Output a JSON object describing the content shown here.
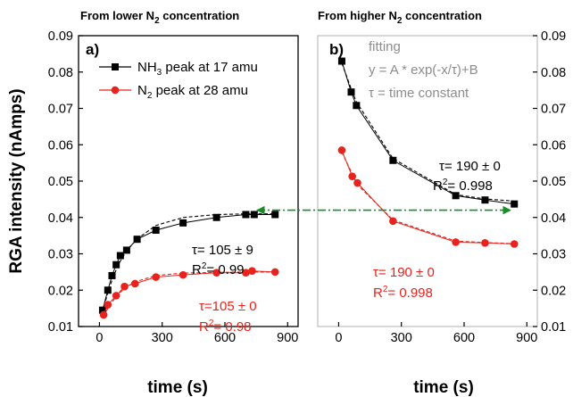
{
  "chart_data": [
    {
      "type": "scatter",
      "panel_label": "a)",
      "title": "From lower N",
      "title_sub": "2",
      "title_tail": " concentration",
      "xlabel": "time (s)",
      "ylabel": "RGA intensity (nAmps)",
      "xlim": [
        -100,
        950
      ],
      "ylim": [
        0.01,
        0.09
      ],
      "xticks": [
        "0",
        "300",
        "600",
        "900"
      ],
      "xtick_values": [
        0,
        300,
        600,
        900
      ],
      "yticks": [
        "0.01",
        "0.02",
        "0.03",
        "0.04",
        "0.05",
        "0.06",
        "0.07",
        "0.08",
        "0.09"
      ],
      "ytick_values": [
        0.01,
        0.02,
        0.03,
        0.04,
        0.05,
        0.06,
        0.07,
        0.08,
        0.09
      ],
      "legend_position": "top-left",
      "series": [
        {
          "name": "NH3 peak at 17 amu",
          "name_parts": [
            "NH",
            "3",
            " peak at 17 amu"
          ],
          "color": "#000000",
          "marker": "square",
          "x": [
            15,
            40,
            60,
            80,
            100,
            130,
            180,
            270,
            400,
            560,
            700,
            740,
            840
          ],
          "y": [
            0.0145,
            0.02,
            0.024,
            0.027,
            0.0295,
            0.031,
            0.034,
            0.0365,
            0.0385,
            0.04,
            0.0408,
            0.0408,
            0.0408
          ],
          "fit_y": [
            0.014,
            0.0193,
            0.0227,
            0.0256,
            0.028,
            0.0308,
            0.0341,
            0.0378,
            0.04,
            0.0408,
            0.041,
            0.041,
            0.041
          ]
        },
        {
          "name": "N2 peak at 28 amu",
          "name_parts": [
            "N",
            "2",
            " peak at 28 amu"
          ],
          "color": "#e8221c",
          "marker": "circle",
          "x": [
            20,
            40,
            80,
            120,
            170,
            270,
            400,
            560,
            700,
            730,
            840
          ],
          "y": [
            0.0132,
            0.016,
            0.0185,
            0.021,
            0.0218,
            0.0236,
            0.0242,
            0.0248,
            0.0248,
            0.0253,
            0.025
          ],
          "fit_y": [
            0.0128,
            0.015,
            0.0183,
            0.0205,
            0.0223,
            0.024,
            0.0247,
            0.0249,
            0.025,
            0.025,
            0.025
          ]
        }
      ],
      "annotations": [
        {
          "parts": [
            "τ= 105 ± 9"
          ],
          "color": "#000000"
        },
        {
          "parts": [
            "R",
            "2",
            "= 0.99"
          ],
          "color": "#000000"
        },
        {
          "parts": [
            "τ=105 ± 0"
          ],
          "color": "#e8221c"
        },
        {
          "parts": [
            "R",
            "2",
            "= 0.98"
          ],
          "color": "#e8221c"
        }
      ]
    },
    {
      "type": "scatter",
      "panel_label": "b)",
      "title": "From higher N",
      "title_sub": "2",
      "title_tail": " concentration",
      "xlabel": "time (s)",
      "xlim": [
        -100,
        950
      ],
      "ylim": [
        0.01,
        0.09
      ],
      "xticks": [
        "0",
        "300",
        "600",
        "900"
      ],
      "xtick_values": [
        0,
        300,
        600,
        900
      ],
      "yticks": [
        "0.01",
        "0.02",
        "0.03",
        "0.04",
        "0.05",
        "0.06",
        "0.07",
        "0.08",
        "0.09"
      ],
      "ytick_values": [
        0.01,
        0.02,
        0.03,
        0.04,
        0.05,
        0.06,
        0.07,
        0.08,
        0.09
      ],
      "series": [
        {
          "color": "#000000",
          "marker": "square",
          "x": [
            15,
            60,
            85,
            260,
            560,
            700,
            840
          ],
          "y": [
            0.083,
            0.0745,
            0.0708,
            0.0557,
            0.046,
            0.0448,
            0.0437
          ],
          "fit_y": [
            0.0825,
            0.0754,
            0.0718,
            0.0562,
            0.0463,
            0.0451,
            0.0445
          ]
        },
        {
          "color": "#e8221c",
          "marker": "circle",
          "x": [
            15,
            65,
            90,
            260,
            560,
            700,
            840
          ],
          "y": [
            0.0585,
            0.0513,
            0.0495,
            0.039,
            0.0332,
            0.033,
            0.0327
          ],
          "fit_y": [
            0.058,
            0.052,
            0.049,
            0.0393,
            0.0335,
            0.0331,
            0.0328
          ]
        }
      ],
      "fit_legend": [
        "fitting",
        "y = A * exp(-x/τ)+B",
        "τ = time constant"
      ],
      "fit_legend_color": "#8c8c8c",
      "annotations": [
        {
          "parts": [
            "τ= 190 ± 0"
          ],
          "color": "#000000"
        },
        {
          "parts": [
            "R",
            "2",
            "= 0.998"
          ],
          "color": "#000000"
        },
        {
          "parts": [
            "τ= 190 ± 0"
          ],
          "color": "#e8221c"
        },
        {
          "parts": [
            "R",
            "2",
            "= 0.998"
          ],
          "color": "#e8221c"
        }
      ]
    }
  ],
  "connector": {
    "y": 0.042,
    "color": "#1a8a2a",
    "style": "dash-dot",
    "arrows": "both"
  }
}
